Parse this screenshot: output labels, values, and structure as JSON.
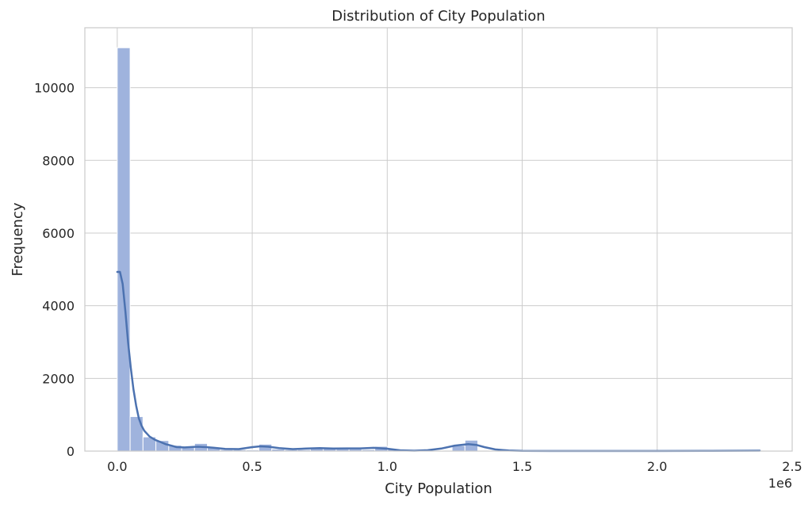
{
  "chart_data": {
    "type": "bar",
    "title": "Distribution of City Population",
    "xlabel": "City Population",
    "ylabel": "Frequency",
    "x_offset_text": "1e6",
    "xlim": [
      -0.12,
      2.5
    ],
    "ylim": [
      0,
      11650
    ],
    "xticks": [
      {
        "value": 0.0,
        "label": "0.0"
      },
      {
        "value": 0.5,
        "label": "0.5"
      },
      {
        "value": 1.0,
        "label": "1.0"
      },
      {
        "value": 1.5,
        "label": "1.5"
      },
      {
        "value": 2.0,
        "label": "2.0"
      },
      {
        "value": 2.5,
        "label": "2.5"
      }
    ],
    "yticks": [
      {
        "value": 0,
        "label": "0"
      },
      {
        "value": 2000,
        "label": "2000"
      },
      {
        "value": 4000,
        "label": "4000"
      },
      {
        "value": 6000,
        "label": "6000"
      },
      {
        "value": 8000,
        "label": "8000"
      },
      {
        "value": 10000,
        "label": "10000"
      }
    ],
    "grid": true,
    "bar_color": "#9fb3dd",
    "kde_color": "#4c72b0",
    "bins": {
      "start": 0.0,
      "width": 0.0477,
      "counts": [
        11100,
        950,
        390,
        290,
        160,
        100,
        210,
        100,
        40,
        40,
        30,
        190,
        55,
        40,
        40,
        70,
        80,
        60,
        55,
        40,
        130,
        45,
        10,
        5,
        5,
        10,
        150,
        300,
        5,
        0,
        0,
        0,
        0,
        0,
        0,
        0,
        0,
        0,
        0,
        0,
        0,
        0,
        0,
        0,
        0,
        0,
        0,
        0,
        0,
        5
      ]
    },
    "kde": {
      "x": [
        0.0,
        0.01,
        0.02,
        0.03,
        0.04,
        0.05,
        0.06,
        0.07,
        0.08,
        0.09,
        0.1,
        0.12,
        0.14,
        0.16,
        0.18,
        0.2,
        0.22,
        0.25,
        0.28,
        0.3,
        0.33,
        0.36,
        0.4,
        0.45,
        0.5,
        0.53,
        0.56,
        0.6,
        0.65,
        0.7,
        0.75,
        0.8,
        0.85,
        0.9,
        0.95,
        1.0,
        1.05,
        1.1,
        1.15,
        1.2,
        1.25,
        1.3,
        1.33,
        1.36,
        1.4,
        1.45,
        1.5,
        1.6,
        1.8,
        2.0,
        2.2,
        2.38
      ],
      "y": [
        4930,
        4930,
        4600,
        3850,
        3000,
        2300,
        1700,
        1250,
        900,
        700,
        560,
        400,
        310,
        250,
        190,
        150,
        110,
        100,
        115,
        120,
        110,
        90,
        60,
        55,
        110,
        130,
        120,
        80,
        55,
        70,
        80,
        70,
        75,
        75,
        90,
        65,
        20,
        10,
        25,
        70,
        150,
        190,
        170,
        110,
        45,
        15,
        5,
        3,
        3,
        3,
        5,
        10
      ]
    }
  }
}
